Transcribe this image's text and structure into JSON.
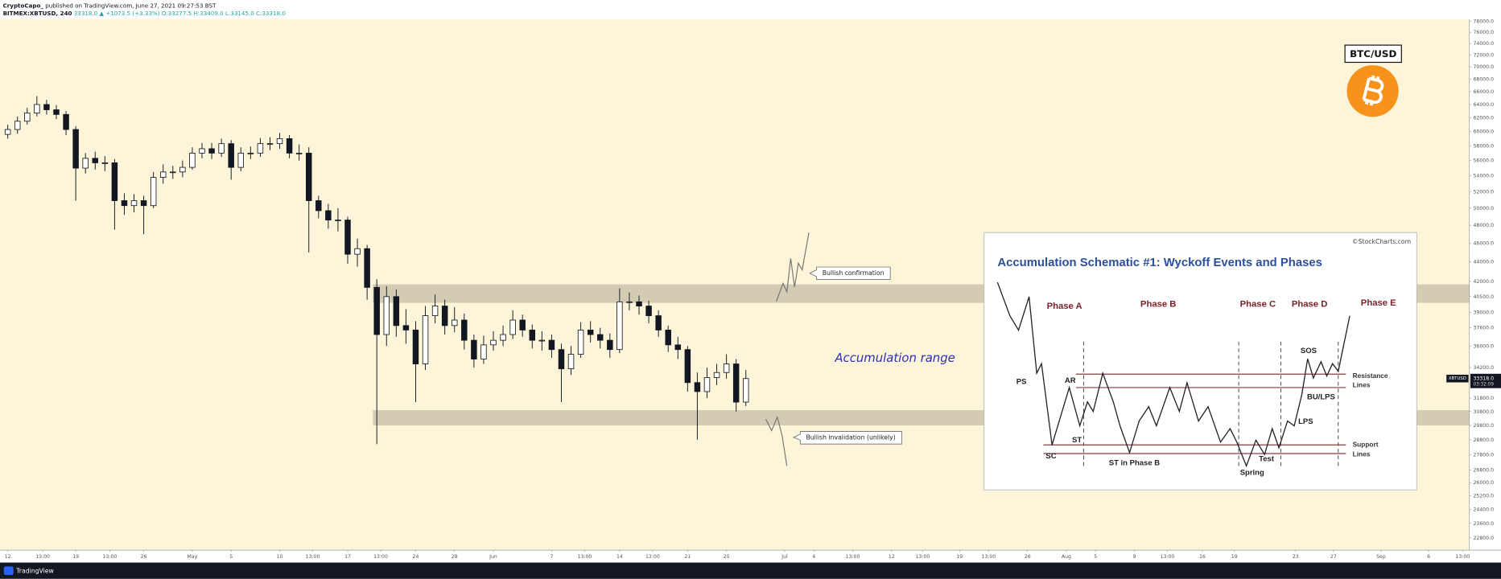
{
  "header": {
    "author": "CryptoCapo_",
    "published": "published on TradingView.com, June 27, 2021 09:27:53 BST",
    "symbol": "BITMEX:XBTUSD, 240",
    "change": "33318.0 ▲ +1073.5 (+3.33%)",
    "open": "O:33277.5",
    "high": "H:33409.0",
    "low": "L:33145.0",
    "close": "C:33318.0"
  },
  "chart_data": {
    "type": "candlestick",
    "badge": "BTC/USD",
    "x": [
      0,
      1,
      2,
      3,
      4,
      5,
      6,
      7,
      8,
      9,
      10,
      11,
      12,
      13,
      14,
      15,
      16,
      17,
      18,
      19,
      20,
      21,
      22,
      23,
      24,
      25,
      26,
      27,
      28,
      29,
      30,
      31,
      32,
      33,
      34,
      35,
      36,
      37,
      38,
      39,
      40,
      41,
      42,
      43,
      44,
      45,
      46,
      47,
      48,
      49,
      50,
      51,
      52,
      53,
      54,
      55,
      56,
      57,
      58,
      59,
      60,
      61,
      62,
      63,
      64,
      65,
      66,
      67,
      68,
      69,
      70,
      71,
      72,
      73,
      74,
      75,
      76
    ],
    "open": [
      59600,
      60300,
      61500,
      62700,
      64000,
      63200,
      62500,
      60300,
      55000,
      56300,
      55700,
      55700,
      50900,
      50300,
      50900,
      50300,
      53800,
      54500,
      54500,
      55100,
      57000,
      57600,
      57000,
      58300,
      55100,
      57000,
      57000,
      58300,
      58300,
      59000,
      57000,
      57000,
      50900,
      49700,
      48600,
      48600,
      44800,
      45400,
      41400,
      37000,
      40500,
      37800,
      37400,
      34500,
      38700,
      39600,
      37800,
      38300,
      36500,
      34900,
      36100,
      36500,
      37000,
      38300,
      37400,
      36500,
      36500,
      35700,
      34100,
      35300,
      37400,
      37000,
      36500,
      35700,
      40000,
      40000,
      39600,
      38700,
      37400,
      36100,
      35700,
      33000,
      32300,
      33400,
      33800,
      34500,
      31500
    ],
    "high": [
      61000,
      62200,
      63500,
      65300,
      64700,
      63900,
      63000,
      60800,
      57000,
      57200,
      56600,
      56200,
      51800,
      51700,
      51500,
      54500,
      55500,
      55300,
      56000,
      57800,
      58400,
      58400,
      59000,
      58800,
      57800,
      57900,
      59100,
      59200,
      59800,
      59500,
      58200,
      57800,
      51500,
      50500,
      50000,
      49000,
      46500,
      45800,
      42200,
      41500,
      41200,
      39300,
      38200,
      39600,
      40700,
      40200,
      39500,
      38900,
      37000,
      36900,
      37300,
      37800,
      39200,
      38800,
      37900,
      37300,
      37000,
      36200,
      36000,
      38100,
      38200,
      37600,
      37100,
      41300,
      40900,
      40600,
      40100,
      39200,
      37800,
      36800,
      36000,
      33800,
      34200,
      34500,
      35300,
      34900,
      34000
    ],
    "low": [
      59000,
      59700,
      61000,
      62200,
      62500,
      61800,
      59500,
      50900,
      54300,
      54800,
      54600,
      47500,
      49200,
      49500,
      47000,
      50000,
      53000,
      53600,
      53800,
      54800,
      56300,
      56200,
      56500,
      53500,
      54600,
      56200,
      56500,
      57400,
      57600,
      56300,
      56000,
      45000,
      48800,
      47600,
      47300,
      43800,
      43500,
      40200,
      28500,
      36000,
      36800,
      36200,
      31500,
      34000,
      38000,
      37000,
      37200,
      35700,
      34200,
      34500,
      35600,
      36000,
      36600,
      36800,
      35800,
      35600,
      35000,
      31500,
      33600,
      35000,
      36300,
      35800,
      35000,
      35400,
      39200,
      38800,
      38000,
      36800,
      35500,
      34900,
      32300,
      28800,
      31800,
      32800,
      33300,
      30800,
      31200
    ],
    "close": [
      60300,
      61500,
      62700,
      64000,
      63200,
      62500,
      60300,
      55000,
      56300,
      55700,
      55700,
      50900,
      50300,
      50900,
      50300,
      53800,
      54500,
      54500,
      55100,
      57000,
      57600,
      57000,
      58300,
      55100,
      57000,
      57000,
      58300,
      58300,
      59000,
      57000,
      57000,
      50900,
      49700,
      48600,
      48600,
      44800,
      45400,
      41400,
      37000,
      40500,
      37800,
      37400,
      34500,
      38700,
      39600,
      37800,
      38300,
      36500,
      34900,
      36100,
      36500,
      37000,
      38300,
      37400,
      36500,
      36500,
      35700,
      34100,
      35300,
      37400,
      37000,
      36500,
      35700,
      40000,
      40000,
      39600,
      38700,
      37400,
      36100,
      35700,
      33000,
      32300,
      33400,
      33800,
      34500,
      31500,
      33318
    ],
    "up_color": "#ffffff",
    "down_color": "#131722",
    "xlim": [
      -0.8,
      150.5
    ],
    "xticks": [
      {
        "value": 0,
        "label": "12"
      },
      {
        "value": 3.6,
        "label": "13:00"
      },
      {
        "value": 7,
        "label": "19"
      },
      {
        "value": 10.5,
        "label": "13:00"
      },
      {
        "value": 14,
        "label": "26"
      },
      {
        "value": 19,
        "label": "May"
      },
      {
        "value": 23,
        "label": "5"
      },
      {
        "value": 28,
        "label": "10"
      },
      {
        "value": 31.4,
        "label": "13:00"
      },
      {
        "value": 35,
        "label": "17"
      },
      {
        "value": 38.4,
        "label": "13:00"
      },
      {
        "value": 42,
        "label": "24"
      },
      {
        "value": 46,
        "label": "28"
      },
      {
        "value": 50,
        "label": "Jun"
      },
      {
        "value": 56,
        "label": "7"
      },
      {
        "value": 59.4,
        "label": "13:00"
      },
      {
        "value": 63,
        "label": "14"
      },
      {
        "value": 66.4,
        "label": "13:00"
      },
      {
        "value": 70,
        "label": "21"
      },
      {
        "value": 74,
        "label": "25"
      },
      {
        "value": 80,
        "label": "Jul"
      },
      {
        "value": 83,
        "label": "4"
      },
      {
        "value": 87,
        "label": "13:00"
      },
      {
        "value": 91,
        "label": "12"
      },
      {
        "value": 94.2,
        "label": "13:00"
      },
      {
        "value": 98,
        "label": "19"
      },
      {
        "value": 101,
        "label": "13:00"
      },
      {
        "value": 105,
        "label": "26"
      },
      {
        "value": 109,
        "label": "Aug"
      },
      {
        "value": 112,
        "label": "5"
      },
      {
        "value": 116,
        "label": "9"
      },
      {
        "value": 119.4,
        "label": "13:00"
      },
      {
        "value": 123,
        "label": "16"
      },
      {
        "value": 126.3,
        "label": "19"
      },
      {
        "value": 132.6,
        "label": "23"
      },
      {
        "value": 136.5,
        "label": "27"
      },
      {
        "value": 141.4,
        "label": "Sep"
      },
      {
        "value": 146.3,
        "label": "6"
      },
      {
        "value": 149.8,
        "label": "13:00"
      }
    ],
    "ylim": [
      22140,
      78400
    ],
    "log_scale": true,
    "grid": false,
    "yticks": [
      {
        "value": 78000,
        "label": "78000.0"
      },
      {
        "value": 76000,
        "label": "76000.0"
      },
      {
        "value": 74000,
        "label": "74000.0"
      },
      {
        "value": 72000,
        "label": "72000.0"
      },
      {
        "value": 70000,
        "label": "70000.0"
      },
      {
        "value": 68000,
        "label": "68000.0"
      },
      {
        "value": 66000,
        "label": "66000.0"
      },
      {
        "value": 64000,
        "label": "64000.0"
      },
      {
        "value": 62000,
        "label": "62000.0"
      },
      {
        "value": 60000,
        "label": "60000.0"
      },
      {
        "value": 58000,
        "label": "58000.0"
      },
      {
        "value": 56000,
        "label": "56000.0"
      },
      {
        "value": 54000,
        "label": "54000.0"
      },
      {
        "value": 52000,
        "label": "52000.0"
      },
      {
        "value": 50000,
        "label": "50000.0"
      },
      {
        "value": 48000,
        "label": "48000.0"
      },
      {
        "value": 46000,
        "label": "46000.0"
      },
      {
        "value": 44000,
        "label": "44000.0"
      },
      {
        "value": 42000,
        "label": "42000.0"
      },
      {
        "value": 40500,
        "label": "40500.0"
      },
      {
        "value": 39000,
        "label": "39000.0"
      },
      {
        "value": 37600,
        "label": "37600.0"
      },
      {
        "value": 36000,
        "label": "36000.0"
      },
      {
        "value": 34200,
        "label": "34200.0"
      },
      {
        "value": 31800,
        "label": "31800.0"
      },
      {
        "value": 30800,
        "label": "30800.0"
      },
      {
        "value": 29800,
        "label": "29800.0"
      },
      {
        "value": 28800,
        "label": "28800.0"
      },
      {
        "value": 27800,
        "label": "27800.0"
      },
      {
        "value": 26800,
        "label": "26800.0"
      },
      {
        "value": 26000,
        "label": "26000.0"
      },
      {
        "value": 25200,
        "label": "25200.0"
      },
      {
        "value": 24400,
        "label": "24400.0"
      },
      {
        "value": 23600,
        "label": "23600.0"
      },
      {
        "value": 22800,
        "label": "22800.0"
      }
    ],
    "zones": [
      {
        "low": 39900,
        "high": 41700,
        "start": 37.6
      },
      {
        "low": 29800,
        "high": 30900,
        "start": 37.6
      }
    ],
    "zone_color": "#d3ccb3",
    "price_tag": {
      "value": 33318,
      "label": "33318.0",
      "symbol": "XBTUSD",
      "countdown": "03:32:09"
    },
    "annotations": {
      "range": "Accumulation range",
      "confirmation": "Bullish confirmation",
      "invalidation": "Bullish invalidation (unlikely)"
    }
  },
  "inset": {
    "credit": "©StockCharts.com",
    "title": "Accumulation Schematic #1: Wyckoff Events and Phases",
    "phases": [
      "Phase A",
      "Phase B",
      "Phase C",
      "Phase D",
      "Phase E"
    ],
    "events": [
      "PS",
      "SC",
      "AR",
      "ST",
      "ST in Phase B",
      "Spring",
      "Test",
      "SOS",
      "LPS",
      "BU/LPS"
    ],
    "resistance": [
      "Resistance",
      "Lines"
    ],
    "support": [
      "Support",
      "Lines"
    ]
  },
  "footer": {
    "brand": "TradingView"
  }
}
